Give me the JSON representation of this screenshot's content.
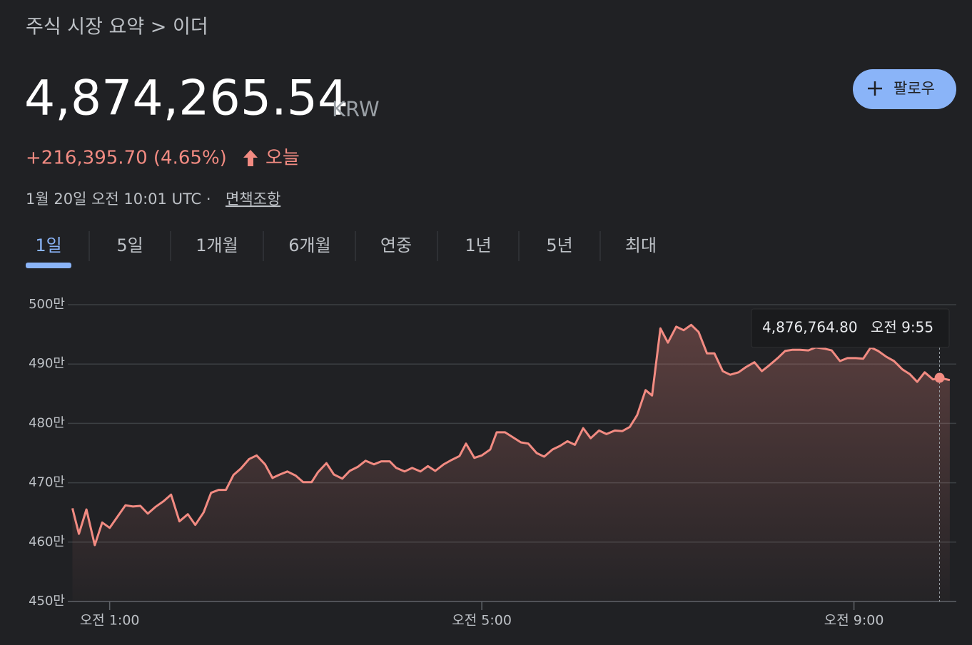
{
  "breadcrumb": "주식 시장 요약 > 이더",
  "price": "4,874,265.54",
  "currency": "KRW",
  "change": "+216,395.70 (4.65%)",
  "change_period": "오늘",
  "timestamp": "1월 20일 오전 10:01 UTC ·",
  "disclaimer": "면책조항",
  "follow_button": "팔로우",
  "tabs": [
    "1일",
    "5일",
    "1개월",
    "6개월",
    "연중",
    "1년",
    "5년",
    "최대"
  ],
  "active_tab": 0,
  "chart_data": {
    "type": "line",
    "color": "#f28b82",
    "grid": true,
    "xlim": [
      0.55,
      10.1
    ],
    "xticks": [
      {
        "value": 1,
        "label": "오전 1:00"
      },
      {
        "value": 5,
        "label": "오전 5:00"
      },
      {
        "value": 9,
        "label": "오전 9:00"
      }
    ],
    "ylim": [
      4500000,
      5000000
    ],
    "yticks": [
      {
        "value": 4500000,
        "label": "450만"
      },
      {
        "value": 4600000,
        "label": "460만"
      },
      {
        "value": 4700000,
        "label": "470만"
      },
      {
        "value": 4800000,
        "label": "480만"
      },
      {
        "value": 4900000,
        "label": "490만"
      },
      {
        "value": 5000000,
        "label": "500만"
      }
    ],
    "x": [
      0.6,
      0.67,
      0.75,
      0.84,
      0.92,
      1.0,
      1.08,
      1.17,
      1.25,
      1.33,
      1.41,
      1.49,
      1.58,
      1.66,
      1.75,
      1.84,
      1.92,
      2.01,
      2.09,
      2.17,
      2.25,
      2.33,
      2.41,
      2.5,
      2.58,
      2.67,
      2.75,
      2.83,
      2.91,
      3.0,
      3.08,
      3.17,
      3.24,
      3.33,
      3.41,
      3.5,
      3.58,
      3.67,
      3.75,
      3.84,
      3.92,
      4.01,
      4.08,
      4.17,
      4.25,
      4.34,
      4.42,
      4.5,
      4.59,
      4.67,
      4.76,
      4.83,
      4.92,
      5.0,
      5.09,
      5.16,
      5.25,
      5.34,
      5.42,
      5.5,
      5.59,
      5.67,
      5.76,
      5.84,
      5.92,
      6.0,
      6.09,
      6.17,
      6.26,
      6.34,
      6.43,
      6.51,
      6.59,
      6.67,
      6.76,
      6.83,
      6.92,
      7.0,
      7.09,
      7.17,
      7.25,
      7.33,
      7.42,
      7.5,
      7.59,
      7.67,
      7.76,
      7.84,
      7.93,
      8.01,
      8.09,
      8.18,
      8.26,
      8.34,
      8.42,
      8.51,
      8.59,
      8.68,
      8.76,
      8.85,
      8.93,
      9.02,
      9.1,
      9.18,
      9.26,
      9.35,
      9.43,
      9.52,
      9.6,
      9.68,
      9.76,
      9.85,
      9.91,
      9.97,
      10.03
    ],
    "values": [
      4657000,
      4614000,
      4655000,
      4595000,
      4633000,
      4624000,
      4642000,
      4662000,
      4660000,
      4661000,
      4648000,
      4659000,
      4669000,
      4680000,
      4635000,
      4647000,
      4629000,
      4650000,
      4683000,
      4688000,
      4688000,
      4713000,
      4724000,
      4740000,
      4746000,
      4731000,
      4708000,
      4714000,
      4719000,
      4712000,
      4701000,
      4701000,
      4718000,
      4733000,
      4714000,
      4707000,
      4720000,
      4727000,
      4737000,
      4731000,
      4736000,
      4736000,
      4725000,
      4719000,
      4725000,
      4719000,
      4728000,
      4720000,
      4731000,
      4738000,
      4745000,
      4766000,
      4742000,
      4746000,
      4756000,
      4785000,
      4785000,
      4776000,
      4768000,
      4766000,
      4750000,
      4744000,
      4756000,
      4762000,
      4770000,
      4764000,
      4792000,
      4775000,
      4788000,
      4782000,
      4788000,
      4787000,
      4794000,
      4814000,
      4856000,
      4847000,
      4960000,
      4936000,
      4963000,
      4957000,
      4966000,
      4954000,
      4918000,
      4918000,
      4888000,
      4882000,
      4886000,
      4895000,
      4903000,
      4888000,
      4898000,
      4910000,
      4922000,
      4924000,
      4924000,
      4923000,
      4928000,
      4926000,
      4923000,
      4905000,
      4910000,
      4910000,
      4909000,
      4928000,
      4922000,
      4912000,
      4905000,
      4891000,
      4883000,
      4870000,
      4886000,
      4874000,
      4876000,
      4875000,
      4873000
    ],
    "tooltip": {
      "x": 9.92,
      "y": 4876764.8,
      "value_label": "4,876,764.80",
      "time_label": "오전 9:55"
    }
  }
}
